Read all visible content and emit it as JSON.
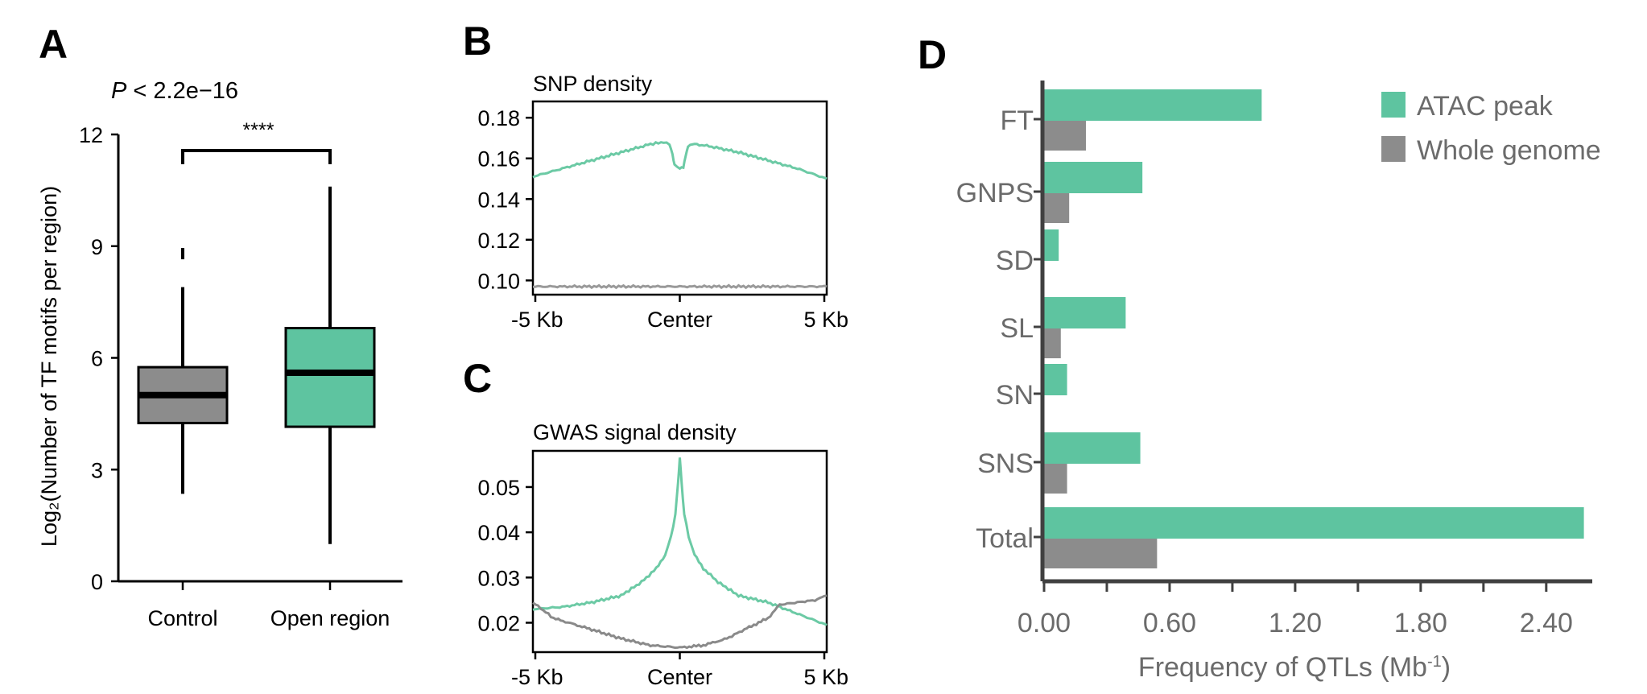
{
  "chart_data": [
    {
      "panel": "A",
      "type": "box",
      "annotation": {
        "p_value": "2.2e−16",
        "significance": "****",
        "p_label": "P"
      },
      "ylabel": "Log₂(Number of TF motifs per region)",
      "ylim": [
        0,
        12
      ],
      "yticks": [
        "0",
        "3",
        "6",
        "9",
        "12"
      ],
      "categories": [
        "Control",
        "Open region"
      ],
      "boxes": [
        {
          "category": "Control",
          "min": 2.35,
          "q1": 4.25,
          "median": 5.0,
          "q3": 5.75,
          "max": 7.9,
          "outlier_max": 8.95,
          "color": "#8c8c8c"
        },
        {
          "category": "Open region",
          "min": 1.0,
          "q1": 4.15,
          "median": 5.6,
          "q3": 6.8,
          "max": 10.6,
          "color": "#5ec4a0"
        }
      ]
    },
    {
      "panel": "B",
      "type": "line",
      "title": "SNP density",
      "xticks": [
        "-5 Kb",
        "Center",
        "5 Kb"
      ],
      "ylim": [
        0.093,
        0.188
      ],
      "yticks": [
        "0.10",
        "0.12",
        "0.14",
        "0.16",
        "0.18"
      ],
      "series": [
        {
          "color": "#6ccaa5",
          "points": [
            [
              -5,
              0.151
            ],
            [
              -4,
              0.155
            ],
            [
              -3,
              0.159
            ],
            [
              -2,
              0.163
            ],
            [
              -1,
              0.167
            ],
            [
              -0.55,
              0.168
            ],
            [
              -0.35,
              0.167
            ],
            [
              -0.25,
              0.162
            ],
            [
              -0.18,
              0.157
            ],
            [
              0,
              0.155
            ],
            [
              0.12,
              0.156
            ],
            [
              0.2,
              0.161
            ],
            [
              0.28,
              0.166
            ],
            [
              0.5,
              0.167
            ],
            [
              1,
              0.166
            ],
            [
              2,
              0.163
            ],
            [
              3,
              0.159
            ],
            [
              4,
              0.155
            ],
            [
              5,
              0.15
            ]
          ]
        },
        {
          "color": "#9a9a9a",
          "points": [
            [
              -5,
              0.097
            ],
            [
              5,
              0.097
            ]
          ]
        }
      ]
    },
    {
      "panel": "C",
      "type": "line",
      "title": "GWAS signal density",
      "xticks": [
        "-5 Kb",
        "Center",
        "5 Kb"
      ],
      "ylim": [
        0.0135,
        0.058
      ],
      "yticks": [
        "0.02",
        "0.03",
        "0.04",
        "0.05"
      ],
      "series": [
        {
          "color": "#6ccaa5",
          "points": [
            [
              -5,
              0.023
            ],
            [
              -4,
              0.0235
            ],
            [
              -3,
              0.0245
            ],
            [
              -2,
              0.026
            ],
            [
              -1.3,
              0.029
            ],
            [
              -0.8,
              0.032
            ],
            [
              -0.5,
              0.035
            ],
            [
              -0.3,
              0.039
            ],
            [
              -0.15,
              0.044
            ],
            [
              -0.06,
              0.051
            ],
            [
              0,
              0.0565
            ],
            [
              0.06,
              0.051
            ],
            [
              0.15,
              0.044
            ],
            [
              0.3,
              0.039
            ],
            [
              0.5,
              0.035
            ],
            [
              0.8,
              0.032
            ],
            [
              1.3,
              0.029
            ],
            [
              2,
              0.026
            ],
            [
              3,
              0.0245
            ],
            [
              4,
              0.022
            ],
            [
              5,
              0.0195
            ]
          ]
        },
        {
          "color": "#8a8a8a",
          "points": [
            [
              -5,
              0.0245
            ],
            [
              -4.3,
              0.021
            ],
            [
              -3,
              0.0185
            ],
            [
              -2,
              0.0165
            ],
            [
              -1,
              0.015
            ],
            [
              0,
              0.0145
            ],
            [
              0.8,
              0.015
            ],
            [
              1.6,
              0.0165
            ],
            [
              2.2,
              0.0185
            ],
            [
              3,
              0.021
            ],
            [
              3.4,
              0.024
            ],
            [
              4,
              0.0245
            ],
            [
              4.6,
              0.025
            ],
            [
              5,
              0.026
            ]
          ]
        }
      ]
    },
    {
      "panel": "D",
      "type": "bar",
      "orientation": "horizontal",
      "xlabel": "Frequency of QTLs (Mb",
      "xlabel_sup": "-1",
      "xlabel_close": ")",
      "xlim": [
        0,
        2.62
      ],
      "xticks": [
        "0.00",
        "0.60",
        "1.20",
        "1.80",
        "2.40"
      ],
      "categories": [
        "FT",
        "GNPS",
        "SD",
        "SL",
        "SN",
        "SNS",
        "Total"
      ],
      "series": [
        {
          "name": "ATAC peak",
          "color": "#5ec4a0",
          "values": [
            1.04,
            0.47,
            0.07,
            0.39,
            0.11,
            0.46,
            2.58
          ]
        },
        {
          "name": "Whole genome",
          "color": "#8c8c8c",
          "values": [
            0.2,
            0.12,
            0.0,
            0.08,
            0.0,
            0.11,
            0.54
          ]
        }
      ]
    }
  ]
}
